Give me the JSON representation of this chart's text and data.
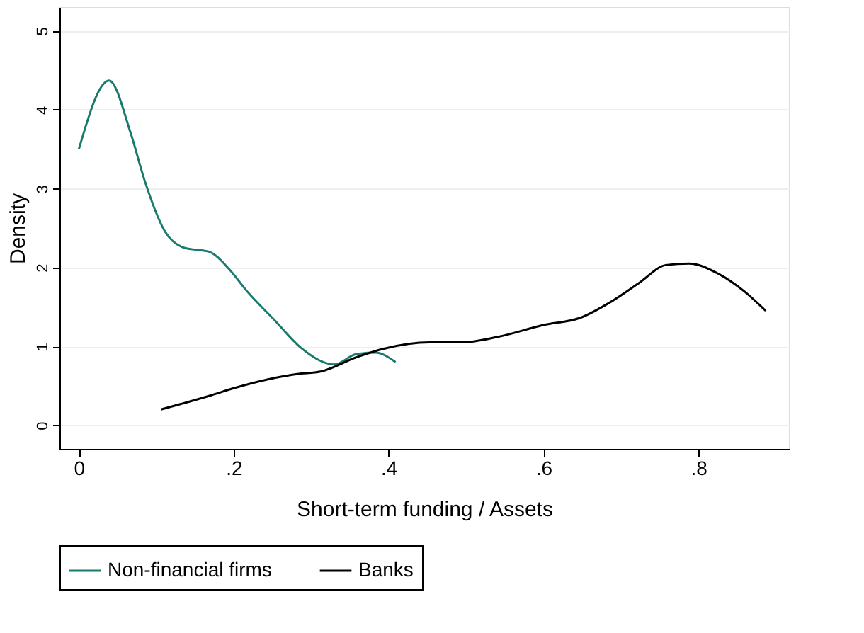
{
  "chart_data": {
    "type": "line",
    "xlabel": "Short-term funding / Assets",
    "ylabel": "Density",
    "xlim": [
      -0.025,
      0.917
    ],
    "ylim": [
      -0.3,
      5.3
    ],
    "xticks": [
      {
        "value": 0,
        "label": "0"
      },
      {
        "value": 0.2,
        "label": ".2"
      },
      {
        "value": 0.4,
        "label": ".4"
      },
      {
        "value": 0.6,
        "label": ".6"
      },
      {
        "value": 0.8,
        "label": ".8"
      }
    ],
    "yticks": [
      0,
      1,
      2,
      3,
      4,
      5
    ],
    "grid": "y",
    "legend": "bottom",
    "line_style": "solid",
    "series": [
      {
        "name": "Non-financial firms",
        "color": "#1a7a6e",
        "x": [
          0.0,
          0.039,
          0.067,
          0.085,
          0.111,
          0.136,
          0.168,
          0.194,
          0.217,
          0.252,
          0.287,
          0.33,
          0.358,
          0.383,
          0.409
        ],
        "values": [
          3.5,
          4.37,
          3.7,
          3.1,
          2.46,
          2.25,
          2.2,
          1.98,
          1.7,
          1.34,
          0.98,
          0.77,
          0.9,
          0.92,
          0.8
        ]
      },
      {
        "name": "Banks",
        "color": "#000000",
        "x": [
          0.106,
          0.171,
          0.2,
          0.282,
          0.312,
          0.358,
          0.394,
          0.453,
          0.494,
          0.541,
          0.6,
          0.647,
          0.688,
          0.723,
          0.758,
          0.788,
          0.824,
          0.859,
          0.887
        ],
        "values": [
          0.2,
          0.38,
          0.47,
          0.65,
          0.68,
          0.86,
          0.97,
          1.05,
          1.05,
          1.12,
          1.27,
          1.36,
          1.57,
          1.8,
          2.03,
          2.05,
          1.93,
          1.7,
          1.45
        ]
      }
    ]
  }
}
